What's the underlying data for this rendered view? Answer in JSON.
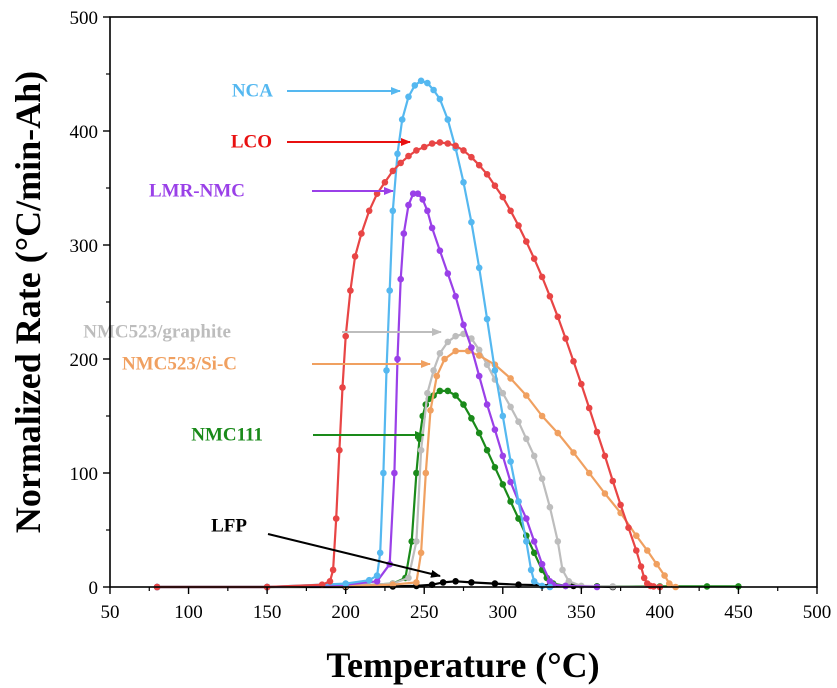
{
  "chart_data": {
    "type": "line",
    "title": "",
    "xlabel": "Temperature (°C)",
    "ylabel": "Normalized Rate (°C/min-Ah)",
    "xlim": [
      50,
      500
    ],
    "ylim": [
      0,
      500
    ],
    "xticks": [
      "50",
      "100",
      "150",
      "200",
      "250",
      "300",
      "350",
      "400",
      "450",
      "500"
    ],
    "yticks": [
      "0",
      "100",
      "200",
      "300",
      "400",
      "500"
    ],
    "grid": false,
    "legend": "none",
    "series": [
      {
        "name": "LFP",
        "color": "#000000",
        "x": [
          80,
          150,
          200,
          230,
          245,
          255,
          262,
          270,
          280,
          295,
          310,
          330,
          345,
          360,
          370
        ],
        "y": [
          0,
          0,
          0,
          0.5,
          1,
          2,
          4,
          5,
          4,
          3,
          2,
          1.5,
          1,
          0.5,
          0
        ]
      },
      {
        "name": "NMC111",
        "color": "#1a8a1a",
        "x": [
          80,
          150,
          200,
          230,
          238,
          242,
          245,
          247,
          249,
          251,
          253,
          256,
          260,
          265,
          270,
          275,
          280,
          285,
          290,
          295,
          300,
          305,
          310,
          315,
          320,
          325,
          328,
          332,
          340,
          360,
          400,
          430,
          450
        ],
        "y": [
          0,
          0,
          1,
          3,
          8,
          40,
          100,
          130,
          150,
          160,
          165,
          168,
          172,
          172,
          168,
          160,
          148,
          135,
          120,
          105,
          90,
          75,
          60,
          45,
          30,
          15,
          8,
          3,
          1,
          0.5,
          0.5,
          0.5,
          0.5
        ]
      },
      {
        "name": "NMC523/graphite",
        "color": "#bdbdbd",
        "x": [
          80,
          150,
          200,
          230,
          240,
          245,
          248,
          252,
          256,
          260,
          265,
          270,
          275,
          280,
          285,
          290,
          295,
          300,
          305,
          310,
          315,
          320,
          325,
          330,
          335,
          338,
          342,
          350,
          370,
          400
        ],
        "y": [
          0,
          0,
          1,
          3,
          8,
          40,
          120,
          170,
          190,
          205,
          215,
          220,
          222,
          218,
          208,
          195,
          182,
          170,
          158,
          145,
          130,
          115,
          95,
          70,
          40,
          15,
          5,
          1,
          0.5,
          0
        ]
      },
      {
        "name": "NMC523/Si-C",
        "color": "#f0a060",
        "x": [
          80,
          150,
          200,
          230,
          245,
          248,
          251,
          254,
          258,
          263,
          270,
          278,
          285,
          295,
          305,
          315,
          325,
          335,
          345,
          355,
          365,
          375,
          385,
          392,
          398,
          403,
          406,
          410
        ],
        "y": [
          0,
          0,
          1,
          2,
          4,
          30,
          100,
          155,
          185,
          200,
          207,
          207,
          203,
          195,
          183,
          168,
          150,
          135,
          118,
          100,
          82,
          65,
          45,
          32,
          20,
          10,
          3,
          0
        ]
      },
      {
        "name": "LMR-NMC",
        "color": "#9a40e8",
        "x": [
          80,
          150,
          200,
          220,
          228,
          231,
          233,
          235,
          237,
          240,
          243,
          246,
          249,
          252,
          255,
          260,
          265,
          270,
          275,
          280,
          285,
          290,
          295,
          300,
          305,
          310,
          315,
          320,
          325,
          330,
          332,
          340,
          360
        ],
        "y": [
          0,
          0,
          2,
          5,
          20,
          100,
          200,
          270,
          310,
          335,
          345,
          345,
          340,
          330,
          315,
          295,
          275,
          255,
          230,
          210,
          185,
          160,
          138,
          115,
          92,
          75,
          60,
          40,
          20,
          5,
          2,
          1,
          0
        ]
      },
      {
        "name": "NCA",
        "color": "#55b8f0",
        "x": [
          80,
          150,
          200,
          215,
          220,
          222,
          224,
          226,
          228,
          230,
          233,
          236,
          240,
          244,
          248,
          252,
          256,
          260,
          265,
          270,
          275,
          280,
          285,
          290,
          295,
          300,
          305,
          310,
          315,
          318,
          320,
          325,
          330
        ],
        "y": [
          0,
          0,
          3,
          6,
          10,
          30,
          100,
          190,
          260,
          330,
          380,
          410,
          430,
          440,
          444,
          442,
          436,
          428,
          410,
          385,
          355,
          320,
          280,
          235,
          190,
          150,
          110,
          75,
          40,
          15,
          5,
          1,
          0
        ]
      },
      {
        "name": "LCO",
        "color": "#e84545",
        "x": [
          80,
          150,
          185,
          190,
          192,
          194,
          196,
          198,
          200,
          203,
          206,
          210,
          215,
          220,
          225,
          230,
          235,
          240,
          245,
          250,
          255,
          260,
          265,
          270,
          275,
          280,
          285,
          290,
          295,
          300,
          305,
          310,
          315,
          320,
          325,
          330,
          335,
          340,
          345,
          350,
          355,
          360,
          365,
          370,
          375,
          380,
          385,
          388,
          390,
          392,
          394,
          396,
          400
        ],
        "y": [
          0,
          0,
          2,
          5,
          15,
          60,
          120,
          175,
          220,
          260,
          290,
          310,
          330,
          345,
          355,
          365,
          372,
          378,
          383,
          386,
          389,
          390,
          389,
          387,
          383,
          377,
          370,
          362,
          352,
          342,
          330,
          317,
          303,
          288,
          272,
          255,
          237,
          218,
          198,
          178,
          157,
          136,
          115,
          93,
          72,
          52,
          32,
          18,
          8,
          3,
          1,
          0.5,
          0
        ]
      }
    ],
    "annotations": [
      {
        "label": "NCA",
        "color": "#55b8f0",
        "text_x": 273,
        "text_y": 92,
        "arrow_from": [
          287,
          91
        ],
        "arrow_to": [
          400,
          91
        ]
      },
      {
        "label": "LCO",
        "color": "#e81010",
        "text_x": 272,
        "text_y": 143,
        "arrow_from": [
          287,
          142
        ],
        "arrow_to": [
          410,
          142
        ]
      },
      {
        "label": "LMR-NMC",
        "color": "#9a40e8",
        "text_x": 245,
        "text_y": 192,
        "arrow_from": [
          312,
          191
        ],
        "arrow_to": [
          393,
          191
        ]
      },
      {
        "label": "NMC523/graphite",
        "color": "#bdbdbd",
        "text_x": 231,
        "text_y": 333,
        "arrow_from": [
          342,
          332
        ],
        "arrow_to": [
          441,
          332
        ]
      },
      {
        "label": "NMC523/Si-C",
        "color": "#f0a060",
        "text_x": 237,
        "text_y": 365,
        "arrow_from": [
          312,
          364
        ],
        "arrow_to": [
          430,
          364
        ]
      },
      {
        "label": "NMC111",
        "color": "#1a8a1a",
        "text_x": 263,
        "text_y": 436,
        "arrow_from": [
          313,
          435
        ],
        "arrow_to": [
          424,
          435
        ]
      },
      {
        "label": "LFP",
        "color": "#000000",
        "text_x": 247,
        "text_y": 527,
        "arrow_from": [
          268,
          534
        ],
        "arrow_to": [
          440,
          576
        ]
      }
    ]
  }
}
